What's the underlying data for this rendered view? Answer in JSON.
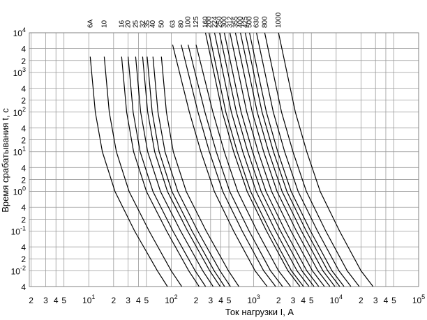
{
  "chart_data": {
    "type": "line",
    "log_x": true,
    "log_y": true,
    "grid": true,
    "line_color": "#000000",
    "x_label": "Ток нагрузки I, А",
    "y_label": "Время срабатывания  t, с",
    "xlim": [
      1.9,
      100000
    ],
    "ylim": [
      0.004,
      10000
    ],
    "xticks": [
      2,
      3,
      4,
      5,
      {
        "value": 10,
        "label": "10",
        "sup": "1"
      },
      {
        "value": 20,
        "label": "2"
      },
      {
        "value": 30,
        "label": "3"
      },
      {
        "value": 40,
        "label": "4"
      },
      {
        "value": 50,
        "label": "5"
      },
      {
        "value": 100,
        "label": "10",
        "sup": "2"
      },
      {
        "value": 200,
        "label": "2"
      },
      {
        "value": 300,
        "label": "3"
      },
      {
        "value": 400,
        "label": "4"
      },
      {
        "value": 500,
        "label": "5"
      },
      {
        "value": 1000,
        "label": "10",
        "sup": "3"
      },
      {
        "value": 2000,
        "label": "2"
      },
      {
        "value": 3000,
        "label": "3"
      },
      {
        "value": 4000,
        "label": "4"
      },
      {
        "value": 5000,
        "label": "5"
      },
      {
        "value": 10000,
        "label": "10",
        "sup": "4"
      },
      {
        "value": 20000,
        "label": "2"
      },
      {
        "value": 30000,
        "label": "3"
      },
      {
        "value": 40000,
        "label": "4"
      },
      {
        "value": 50000,
        "label": "5"
      },
      {
        "value": 100000,
        "label": "10",
        "sup": "5"
      }
    ],
    "yticks": [
      {
        "value": 10000,
        "label": "10",
        "sup": "4"
      },
      {
        "value": 4000,
        "label": "4"
      },
      {
        "value": 2000,
        "label": "2"
      },
      {
        "value": 1000,
        "label": "10",
        "sup": "3"
      },
      {
        "value": 400,
        "label": "4"
      },
      {
        "value": 200,
        "label": "2"
      },
      {
        "value": 100,
        "label": "10",
        "sup": "2"
      },
      {
        "value": 40,
        "label": "4"
      },
      {
        "value": 20,
        "label": "2"
      },
      {
        "value": 10,
        "label": "10",
        "sup": "1"
      },
      4,
      2,
      {
        "value": 1,
        "label": "10",
        "sup": "0"
      },
      {
        "value": 0.4,
        "label": "4"
      },
      {
        "value": 0.2,
        "label": "2"
      },
      {
        "value": 0.1,
        "label": "10",
        "sup": "-1"
      },
      {
        "value": 0.04,
        "label": "4"
      },
      {
        "value": 0.02,
        "label": "2"
      },
      {
        "value": 0.01,
        "label": "10",
        "sup": "-2"
      },
      {
        "value": 0.004,
        "label": "4"
      }
    ],
    "series": [
      {
        "name": "6A",
        "x": [
          10.4,
          12,
          14.6,
          20.8,
          36,
          68,
          90
        ],
        "values": [
          2500,
          100,
          10,
          1,
          0.1,
          0.01,
          0.004
        ]
      },
      {
        "name": "10",
        "x": [
          15.4,
          17.7,
          21.6,
          30.8,
          54,
          100,
          134
        ],
        "values": [
          2500,
          100,
          10,
          1,
          0.1,
          0.01,
          0.004
        ]
      },
      {
        "name": "16",
        "x": [
          25,
          28.8,
          35,
          50,
          88,
          163,
          218
        ],
        "values": [
          2500,
          100,
          10,
          1,
          0.1,
          0.01,
          0.004
        ]
      },
      {
        "name": "20",
        "x": [
          30,
          34.5,
          42,
          60,
          105,
          195,
          261
        ],
        "values": [
          2500,
          100,
          10,
          1,
          0.1,
          0.01,
          0.004
        ]
      },
      {
        "name": "25",
        "x": [
          37,
          42.6,
          51.8,
          74,
          130,
          241,
          322
        ],
        "values": [
          2500,
          100,
          10,
          1,
          0.1,
          0.01,
          0.004
        ]
      },
      {
        "name": "32",
        "x": [
          45,
          51.8,
          63,
          90,
          158,
          293,
          392
        ],
        "values": [
          2500,
          100,
          10,
          1,
          0.1,
          0.01,
          0.004
        ]
      },
      {
        "name": "35",
        "x": [
          51,
          58.7,
          71.4,
          102,
          179,
          332,
          444
        ],
        "values": [
          2500,
          100,
          10,
          1,
          0.1,
          0.01,
          0.004
        ]
      },
      {
        "name": "40",
        "x": [
          60,
          69,
          84,
          120,
          210,
          390,
          522
        ],
        "values": [
          2500,
          100,
          10,
          1,
          0.1,
          0.01,
          0.004
        ]
      },
      {
        "name": "50",
        "x": [
          76,
          87.4,
          106,
          152,
          266,
          494,
          661
        ],
        "values": [
          2500,
          100,
          10,
          1,
          0.1,
          0.01,
          0.004
        ]
      },
      {
        "name": "63",
        "x": [
          104,
          166,
          229,
          333,
          572,
          1040,
          1456
        ],
        "values": [
          5000,
          100,
          10,
          1,
          0.1,
          0.01,
          0.004
        ]
      },
      {
        "name": "80",
        "x": [
          132,
          211,
          290,
          422,
          726,
          1320,
          1848
        ],
        "values": [
          5000,
          100,
          10,
          1,
          0.1,
          0.01,
          0.004
        ]
      },
      {
        "name": "100",
        "x": [
          160,
          256,
          352,
          512,
          880,
          1600,
          2240
        ],
        "values": [
          5000,
          100,
          10,
          1,
          0.1,
          0.01,
          0.004
        ]
      },
      {
        "name": "125",
        "x": [
          200,
          320,
          440,
          640,
          1100,
          2000,
          2800
        ],
        "values": [
          5000,
          100,
          10,
          1,
          0.1,
          0.01,
          0.004
        ]
      },
      {
        "name": "160",
        "x": [
          260,
          416,
          572,
          832,
          1430,
          2600,
          3640
        ],
        "values": [
          10000,
          100,
          10,
          1,
          0.1,
          0.01,
          0.004
        ]
      },
      {
        "name": "200",
        "x": [
          287,
          459,
          631,
          918,
          1579,
          2870,
          4018
        ],
        "values": [
          10000,
          100,
          10,
          1,
          0.1,
          0.01,
          0.004
        ]
      },
      {
        "name": "224",
        "x": [
          335,
          536,
          737,
          1072,
          1843,
          3350,
          4690
        ],
        "values": [
          10000,
          100,
          10,
          1,
          0.1,
          0.01,
          0.004
        ]
      },
      {
        "name": "250",
        "x": [
          385,
          616,
          847,
          1232,
          2118,
          3850,
          5390
        ],
        "values": [
          10000,
          100,
          10,
          1,
          0.1,
          0.01,
          0.004
        ]
      },
      {
        "name": "300",
        "x": [
          440,
          704,
          968,
          1408,
          2420,
          4400,
          6160
        ],
        "values": [
          10000,
          100,
          10,
          1,
          0.1,
          0.01,
          0.004
        ]
      },
      {
        "name": "312",
        "x": [
          515,
          824,
          1133,
          1648,
          2833,
          5150,
          7210
        ],
        "values": [
          10000,
          100,
          10,
          1,
          0.1,
          0.01,
          0.004
        ]
      },
      {
        "name": "355",
        "x": [
          600,
          960,
          1320,
          1920,
          3300,
          6000,
          8400
        ],
        "values": [
          10000,
          100,
          10,
          1,
          0.1,
          0.01,
          0.004
        ]
      },
      {
        "name": "400",
        "x": [
          690,
          1104,
          1518,
          2208,
          3795,
          6900,
          9660
        ],
        "values": [
          10000,
          100,
          10,
          1,
          0.1,
          0.01,
          0.004
        ]
      },
      {
        "name": "425",
        "x": [
          790,
          1264,
          1738,
          2528,
          4345,
          7900,
          11060
        ],
        "values": [
          10000,
          100,
          10,
          1,
          0.1,
          0.01,
          0.004
        ]
      },
      {
        "name": "500",
        "x": [
          890,
          1424,
          1958,
          2848,
          4895,
          8900,
          12460
        ],
        "values": [
          10000,
          100,
          10,
          1,
          0.1,
          0.01,
          0.004
        ]
      },
      {
        "name": "630",
        "x": [
          1080,
          1728,
          2376,
          3456,
          5940,
          10800,
          15120
        ],
        "values": [
          10000,
          100,
          10,
          1,
          0.1,
          0.01,
          0.004
        ]
      },
      {
        "name": "800",
        "x": [
          1360,
          2176,
          2992,
          4352,
          7480,
          13600,
          19040
        ],
        "values": [
          10000,
          100,
          10,
          1,
          0.1,
          0.01,
          0.004
        ]
      },
      {
        "name": "1000",
        "x": [
          2000,
          3200,
          4400,
          6400,
          11000,
          20000,
          28000
        ],
        "values": [
          10000,
          100,
          10,
          1,
          0.1,
          0.01,
          0.004
        ]
      }
    ]
  }
}
